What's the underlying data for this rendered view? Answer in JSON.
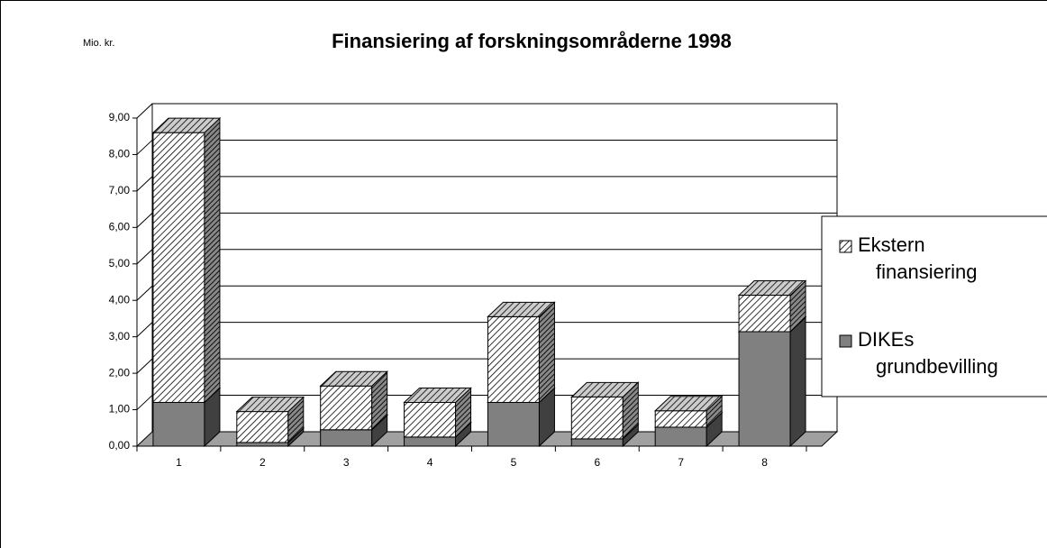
{
  "chart_data": {
    "type": "bar3d_stacked",
    "title": "Finansiering af forskningsområderne 1998",
    "ylabel": "Mio. kr.",
    "categories": [
      "1",
      "2",
      "3",
      "4",
      "5",
      "6",
      "7",
      "8"
    ],
    "series": [
      {
        "name": "DIKEs grundbevilling",
        "color": "#808080",
        "values": [
          1.2,
          0.1,
          0.45,
          0.25,
          1.2,
          0.2,
          0.52,
          3.14
        ]
      },
      {
        "name": "Ekstern finansiering",
        "color": "#000000",
        "pattern": "hatch",
        "values": [
          7.4,
          0.85,
          1.2,
          0.95,
          2.35,
          1.15,
          0.45,
          1.0
        ]
      }
    ],
    "ylim": [
      0,
      9
    ],
    "yticks": [
      {
        "value": 0,
        "label": "0,00"
      },
      {
        "value": 1,
        "label": "1,00"
      },
      {
        "value": 2,
        "label": "2,00"
      },
      {
        "value": 3,
        "label": "3,00"
      },
      {
        "value": 4,
        "label": "4,00"
      },
      {
        "value": 5,
        "label": "5,00"
      },
      {
        "value": 6,
        "label": "6,00"
      },
      {
        "value": 7,
        "label": "7,00"
      },
      {
        "value": 8,
        "label": "8,00"
      },
      {
        "value": 9,
        "label": "9,00"
      }
    ],
    "grid": true,
    "legend": "right"
  }
}
